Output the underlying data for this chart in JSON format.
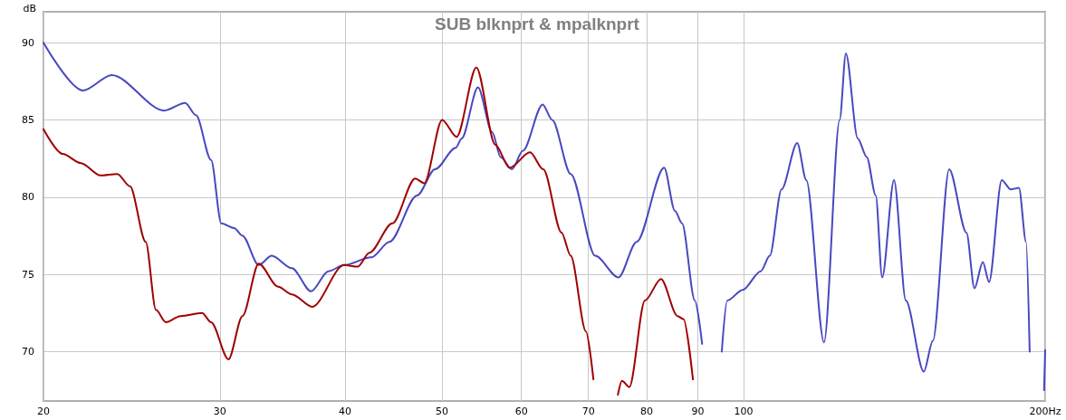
{
  "chart_data": {
    "type": "line",
    "title": "SUB blknprt & mpalknprt",
    "ylabel": "dB",
    "log": "x",
    "grid": true,
    "marker": "none",
    "line_style": "solid",
    "xlim": [
      20,
      200
    ],
    "xticks": [
      20,
      30,
      40,
      50,
      60,
      70,
      80,
      90,
      100,
      {
        "value": 200,
        "label": "200Hz"
      }
    ],
    "ylim": [
      66.8,
      92.0
    ],
    "yticks": [
      70,
      75,
      80,
      85,
      90
    ],
    "series": [
      {
        "color": "#4848c0",
        "x": [
          20,
          21.9,
          23.4,
          26.4,
          27.7,
          28.4,
          29.4,
          30.1,
          31.0,
          31.6,
          32.8,
          33.8,
          35.4,
          37.0,
          38.5,
          39.9,
          42.5,
          44.3,
          47.2,
          49.2,
          51.6,
          52.3,
          54.3,
          56.1,
          57.2,
          58.7,
          60.2,
          63.0,
          64.4,
          67.2,
          71.1,
          75.0,
          78.2,
          83.3,
          85.4,
          86.8,
          89.4,
          90.9,
          92.8,
          95.1,
          96.3,
          99.8,
          104.0,
          106.2,
          109.1,
          113.1,
          115.5,
          120.3,
          124.7,
          126.5,
          130.0,
          132.7,
          135.5,
          137.5,
          141.3,
          145.2,
          151.3,
          154.5,
          160.4,
          166.9,
          170.0,
          173.3,
          175.8,
          181.0,
          184.8,
          188.3,
          191.4,
          193.0,
          196.5,
          199.5,
          200
        ],
        "values": [
          90.0,
          86.9,
          87.9,
          85.6,
          86.1,
          85.3,
          82.4,
          78.3,
          78.0,
          77.5,
          75.6,
          76.2,
          75.4,
          73.9,
          75.2,
          75.6,
          76.1,
          77.1,
          80.1,
          81.8,
          83.2,
          83.8,
          87.1,
          84.2,
          82.6,
          81.8,
          83.0,
          86.0,
          85.0,
          81.5,
          76.2,
          74.8,
          77.1,
          81.9,
          79.1,
          78.3,
          73.3,
          70.5,
          null,
          70.0,
          73.3,
          74.0,
          75.2,
          76.2,
          80.5,
          83.5,
          81.1,
          70.6,
          85.0,
          89.3,
          83.8,
          82.6,
          80.1,
          74.8,
          81.1,
          73.3,
          68.7,
          70.7,
          81.8,
          77.7,
          74.1,
          75.8,
          74.5,
          81.1,
          80.5,
          80.6,
          77.1,
          70.0,
          null,
          67.5,
          70.1
        ]
      },
      {
        "color": "#a00000",
        "x": [
          20,
          20.9,
          21.8,
          22.8,
          23.7,
          24.4,
          25.3,
          25.9,
          26.5,
          27.4,
          28.8,
          29.4,
          30.6,
          31.6,
          32.8,
          34.3,
          35.4,
          37.1,
          39.9,
          41.2,
          42.3,
          44.6,
          47.0,
          48.0,
          50.0,
          51.7,
          54.1,
          56.5,
          58.4,
          61.2,
          63.1,
          65.8,
          67.2,
          69.6,
          70.8,
          72.8,
          74.9,
          75.6,
          76.9,
          79.7,
          82.7,
          85.9,
          87.1,
          89.0
        ],
        "values": [
          84.4,
          82.8,
          82.2,
          81.4,
          81.5,
          80.7,
          77.1,
          72.7,
          71.9,
          72.3,
          72.5,
          71.9,
          69.5,
          72.3,
          75.7,
          74.2,
          73.7,
          72.9,
          75.6,
          75.5,
          76.4,
          78.3,
          81.2,
          80.9,
          85.0,
          83.9,
          88.4,
          83.4,
          81.9,
          82.9,
          81.8,
          77.7,
          76.2,
          71.3,
          68.2,
          null,
          67.2,
          68.1,
          67.7,
          73.3,
          74.7,
          72.3,
          72.1,
          68.2
        ]
      }
    ]
  }
}
